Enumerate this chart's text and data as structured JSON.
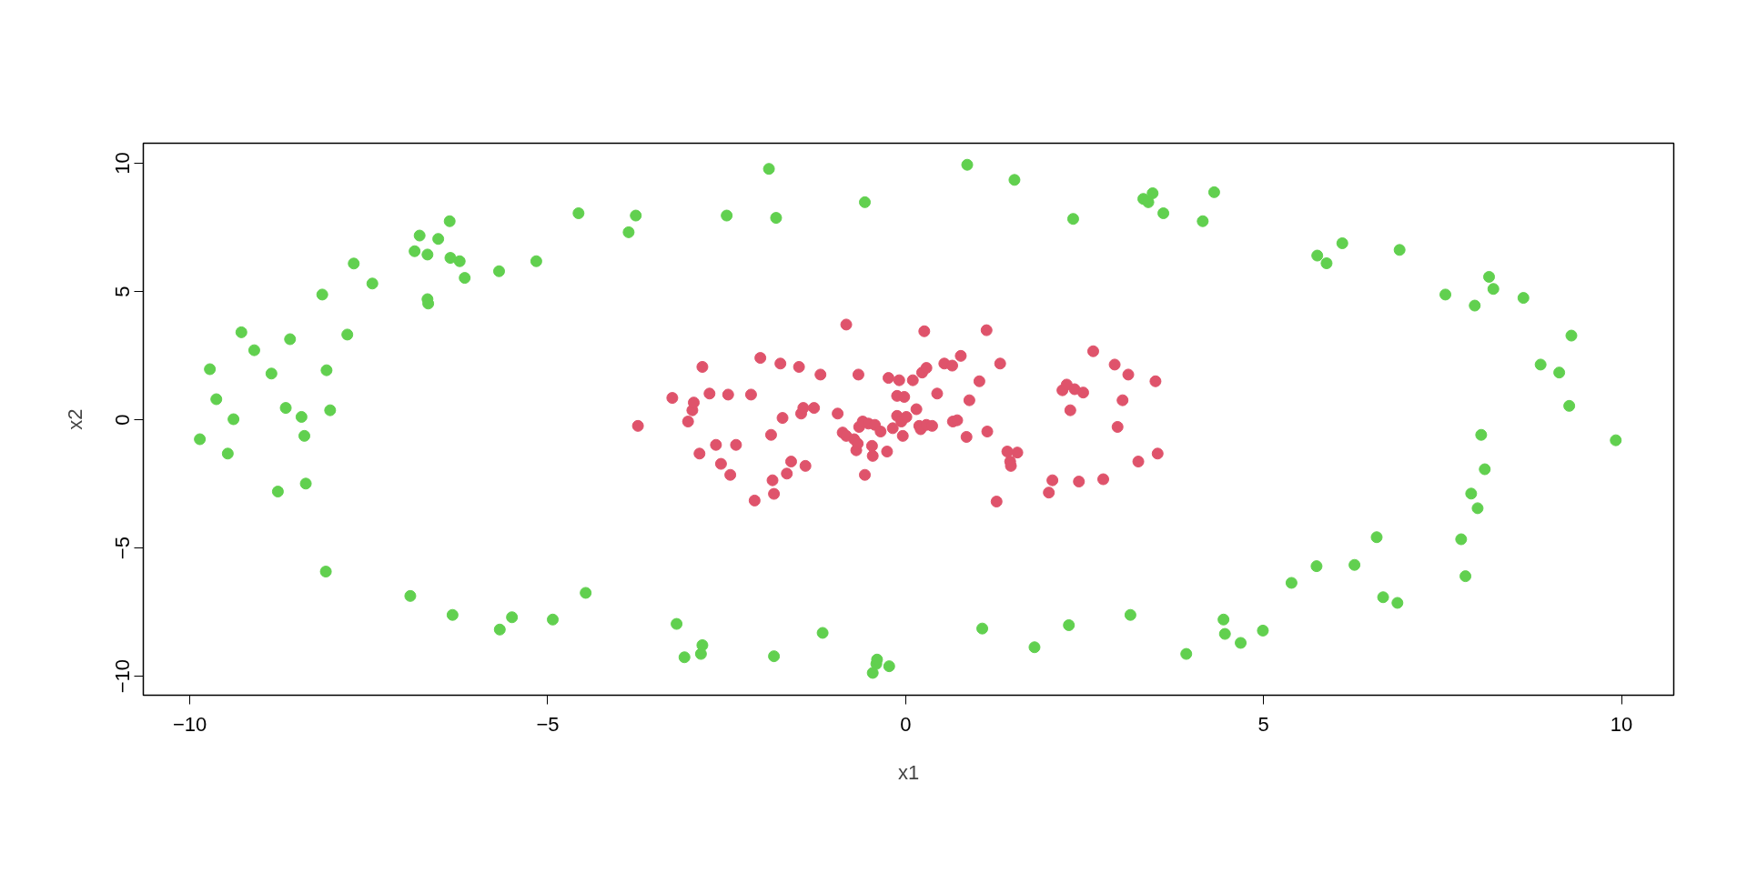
{
  "chart_data": {
    "type": "scatter",
    "xlabel": "x1",
    "ylabel": "x2",
    "xlim": [
      -10.65,
      10.73
    ],
    "ylim": [
      -10.74,
      10.78
    ],
    "xticks": [
      -10,
      -5,
      0,
      5,
      10
    ],
    "yticks": [
      -10,
      -5,
      0,
      5,
      10
    ],
    "marker": "circle",
    "series": [
      {
        "color": "#61d04f",
        "x": [
          -9.86,
          -9.72,
          -9.63,
          -9.47,
          -9.39,
          -9.28,
          -9.1,
          -8.86,
          -8.77,
          -8.66,
          -8.6,
          -8.44,
          -8.4,
          -8.38,
          -8.15,
          -8.1,
          -8.09,
          -8.04,
          -7.8,
          -7.71,
          -7.45,
          -6.92,
          -6.86,
          -6.79,
          -6.68,
          -6.68,
          -6.67,
          -6.53,
          -6.37,
          -6.36,
          -6.33,
          -6.23,
          -6.16,
          -5.67,
          -5.68,
          -5.5,
          -5.16,
          -4.93,
          -4.57,
          -4.47,
          -3.87,
          -3.77,
          -3.2,
          -3.09,
          -2.86,
          -2.84,
          -2.5,
          -1.91,
          -1.84,
          -1.81,
          -1.16,
          -0.57,
          -0.46,
          -0.41,
          -0.4,
          -0.23,
          0.86,
          1.07,
          1.52,
          1.8,
          2.34,
          2.28,
          3.32,
          3.39,
          3.45,
          3.6,
          3.14,
          3.92,
          4.15,
          4.31,
          4.44,
          4.46,
          4.68,
          4.99,
          5.39,
          5.74,
          5.75,
          5.88,
          6.1,
          6.27,
          6.58,
          6.67,
          6.9,
          6.87,
          7.54,
          7.76,
          7.82,
          7.95,
          7.9,
          7.99,
          8.04,
          8.09,
          8.15,
          8.21,
          8.63,
          8.87,
          9.13,
          9.3,
          9.27,
          9.92
        ],
        "values": [
          -0.76,
          1.97,
          0.8,
          -1.32,
          0.02,
          3.41,
          2.71,
          1.8,
          -2.8,
          0.46,
          3.14,
          0.11,
          -0.63,
          -2.49,
          4.88,
          -5.92,
          1.93,
          0.37,
          3.32,
          6.09,
          5.31,
          -6.87,
          6.57,
          7.18,
          6.44,
          4.7,
          4.53,
          7.05,
          7.74,
          6.31,
          -7.61,
          6.18,
          5.53,
          -8.18,
          5.79,
          -7.7,
          6.18,
          -7.79,
          8.05,
          -6.75,
          7.31,
          7.96,
          -7.96,
          -9.26,
          -9.13,
          -8.79,
          7.96,
          9.78,
          -9.22,
          7.87,
          -8.31,
          8.48,
          -9.87,
          -9.52,
          -9.35,
          -9.61,
          9.94,
          -8.14,
          9.35,
          -8.87,
          7.83,
          -8.01,
          8.61,
          8.48,
          8.83,
          8.05,
          -7.61,
          -9.13,
          7.74,
          8.87,
          -7.79,
          -8.35,
          -8.7,
          -8.22,
          -6.36,
          -5.71,
          6.4,
          6.1,
          6.88,
          -5.66,
          -4.58,
          -6.92,
          6.62,
          -7.14,
          4.88,
          -4.66,
          -6.1,
          4.45,
          -2.88,
          -3.45,
          -0.59,
          -1.93,
          5.57,
          5.1,
          4.75,
          2.15,
          1.84,
          3.28,
          0.54,
          -0.8
        ]
      },
      {
        "color": "#df536b",
        "x": [
          -3.74,
          -3.26,
          -3.04,
          -2.98,
          -2.96,
          -2.88,
          -2.84,
          -2.74,
          -2.65,
          -2.58,
          -2.48,
          -2.45,
          -2.37,
          -2.16,
          -2.11,
          -2.03,
          -1.88,
          -1.86,
          -1.84,
          -1.75,
          -1.72,
          -1.66,
          -1.6,
          -1.49,
          -1.46,
          -1.43,
          -1.4,
          -1.28,
          -1.19,
          -0.95,
          -0.88,
          -0.83,
          -0.83,
          -0.72,
          -0.69,
          -0.67,
          -0.66,
          -0.65,
          -0.6,
          -0.57,
          -0.52,
          -0.47,
          -0.46,
          -0.43,
          -0.35,
          -0.26,
          -0.24,
          -0.18,
          -0.12,
          -0.12,
          -0.09,
          -0.06,
          -0.04,
          -0.02,
          0.01,
          0.1,
          0.15,
          0.19,
          0.23,
          0.21,
          0.26,
          0.29,
          0.29,
          0.37,
          0.44,
          0.54,
          0.65,
          0.66,
          0.72,
          0.77,
          0.85,
          0.89,
          1.03,
          1.14,
          1.13,
          1.27,
          1.32,
          1.42,
          1.46,
          1.47,
          1.56,
          2.0,
          2.05,
          2.19,
          2.25,
          2.3,
          2.36,
          2.42,
          2.48,
          2.62,
          2.76,
          2.92,
          2.96,
          3.03,
          3.11,
          3.25,
          3.49,
          3.52
        ],
        "values": [
          -0.24,
          0.85,
          -0.07,
          0.37,
          0.67,
          -1.32,
          2.06,
          1.02,
          -0.98,
          -1.72,
          0.98,
          -2.15,
          -0.98,
          0.98,
          -3.15,
          2.41,
          -0.59,
          -2.36,
          -2.89,
          2.19,
          0.07,
          -2.1,
          -1.63,
          2.06,
          0.24,
          0.46,
          -1.8,
          0.46,
          1.76,
          0.24,
          -0.5,
          -0.63,
          3.71,
          -0.76,
          -1.19,
          -0.93,
          1.76,
          -0.28,
          -0.07,
          -2.15,
          -0.15,
          -1.02,
          -1.41,
          -0.2,
          -0.46,
          -1.24,
          1.63,
          -0.33,
          0.93,
          0.15,
          1.54,
          -0.07,
          -0.63,
          0.89,
          0.11,
          1.54,
          0.41,
          -0.24,
          1.84,
          -0.37,
          3.45,
          2.02,
          -0.2,
          -0.24,
          1.02,
          2.19,
          2.11,
          -0.07,
          -0.02,
          2.49,
          -0.67,
          0.76,
          1.5,
          -0.46,
          3.49,
          -3.19,
          2.19,
          -1.24,
          -1.63,
          -1.8,
          -1.28,
          -2.84,
          -2.36,
          1.15,
          1.37,
          0.37,
          1.19,
          -2.41,
          1.06,
          2.67,
          -2.32,
          2.15,
          -0.28,
          0.76,
          1.76,
          -1.63,
          1.5,
          -1.32
        ]
      }
    ]
  }
}
